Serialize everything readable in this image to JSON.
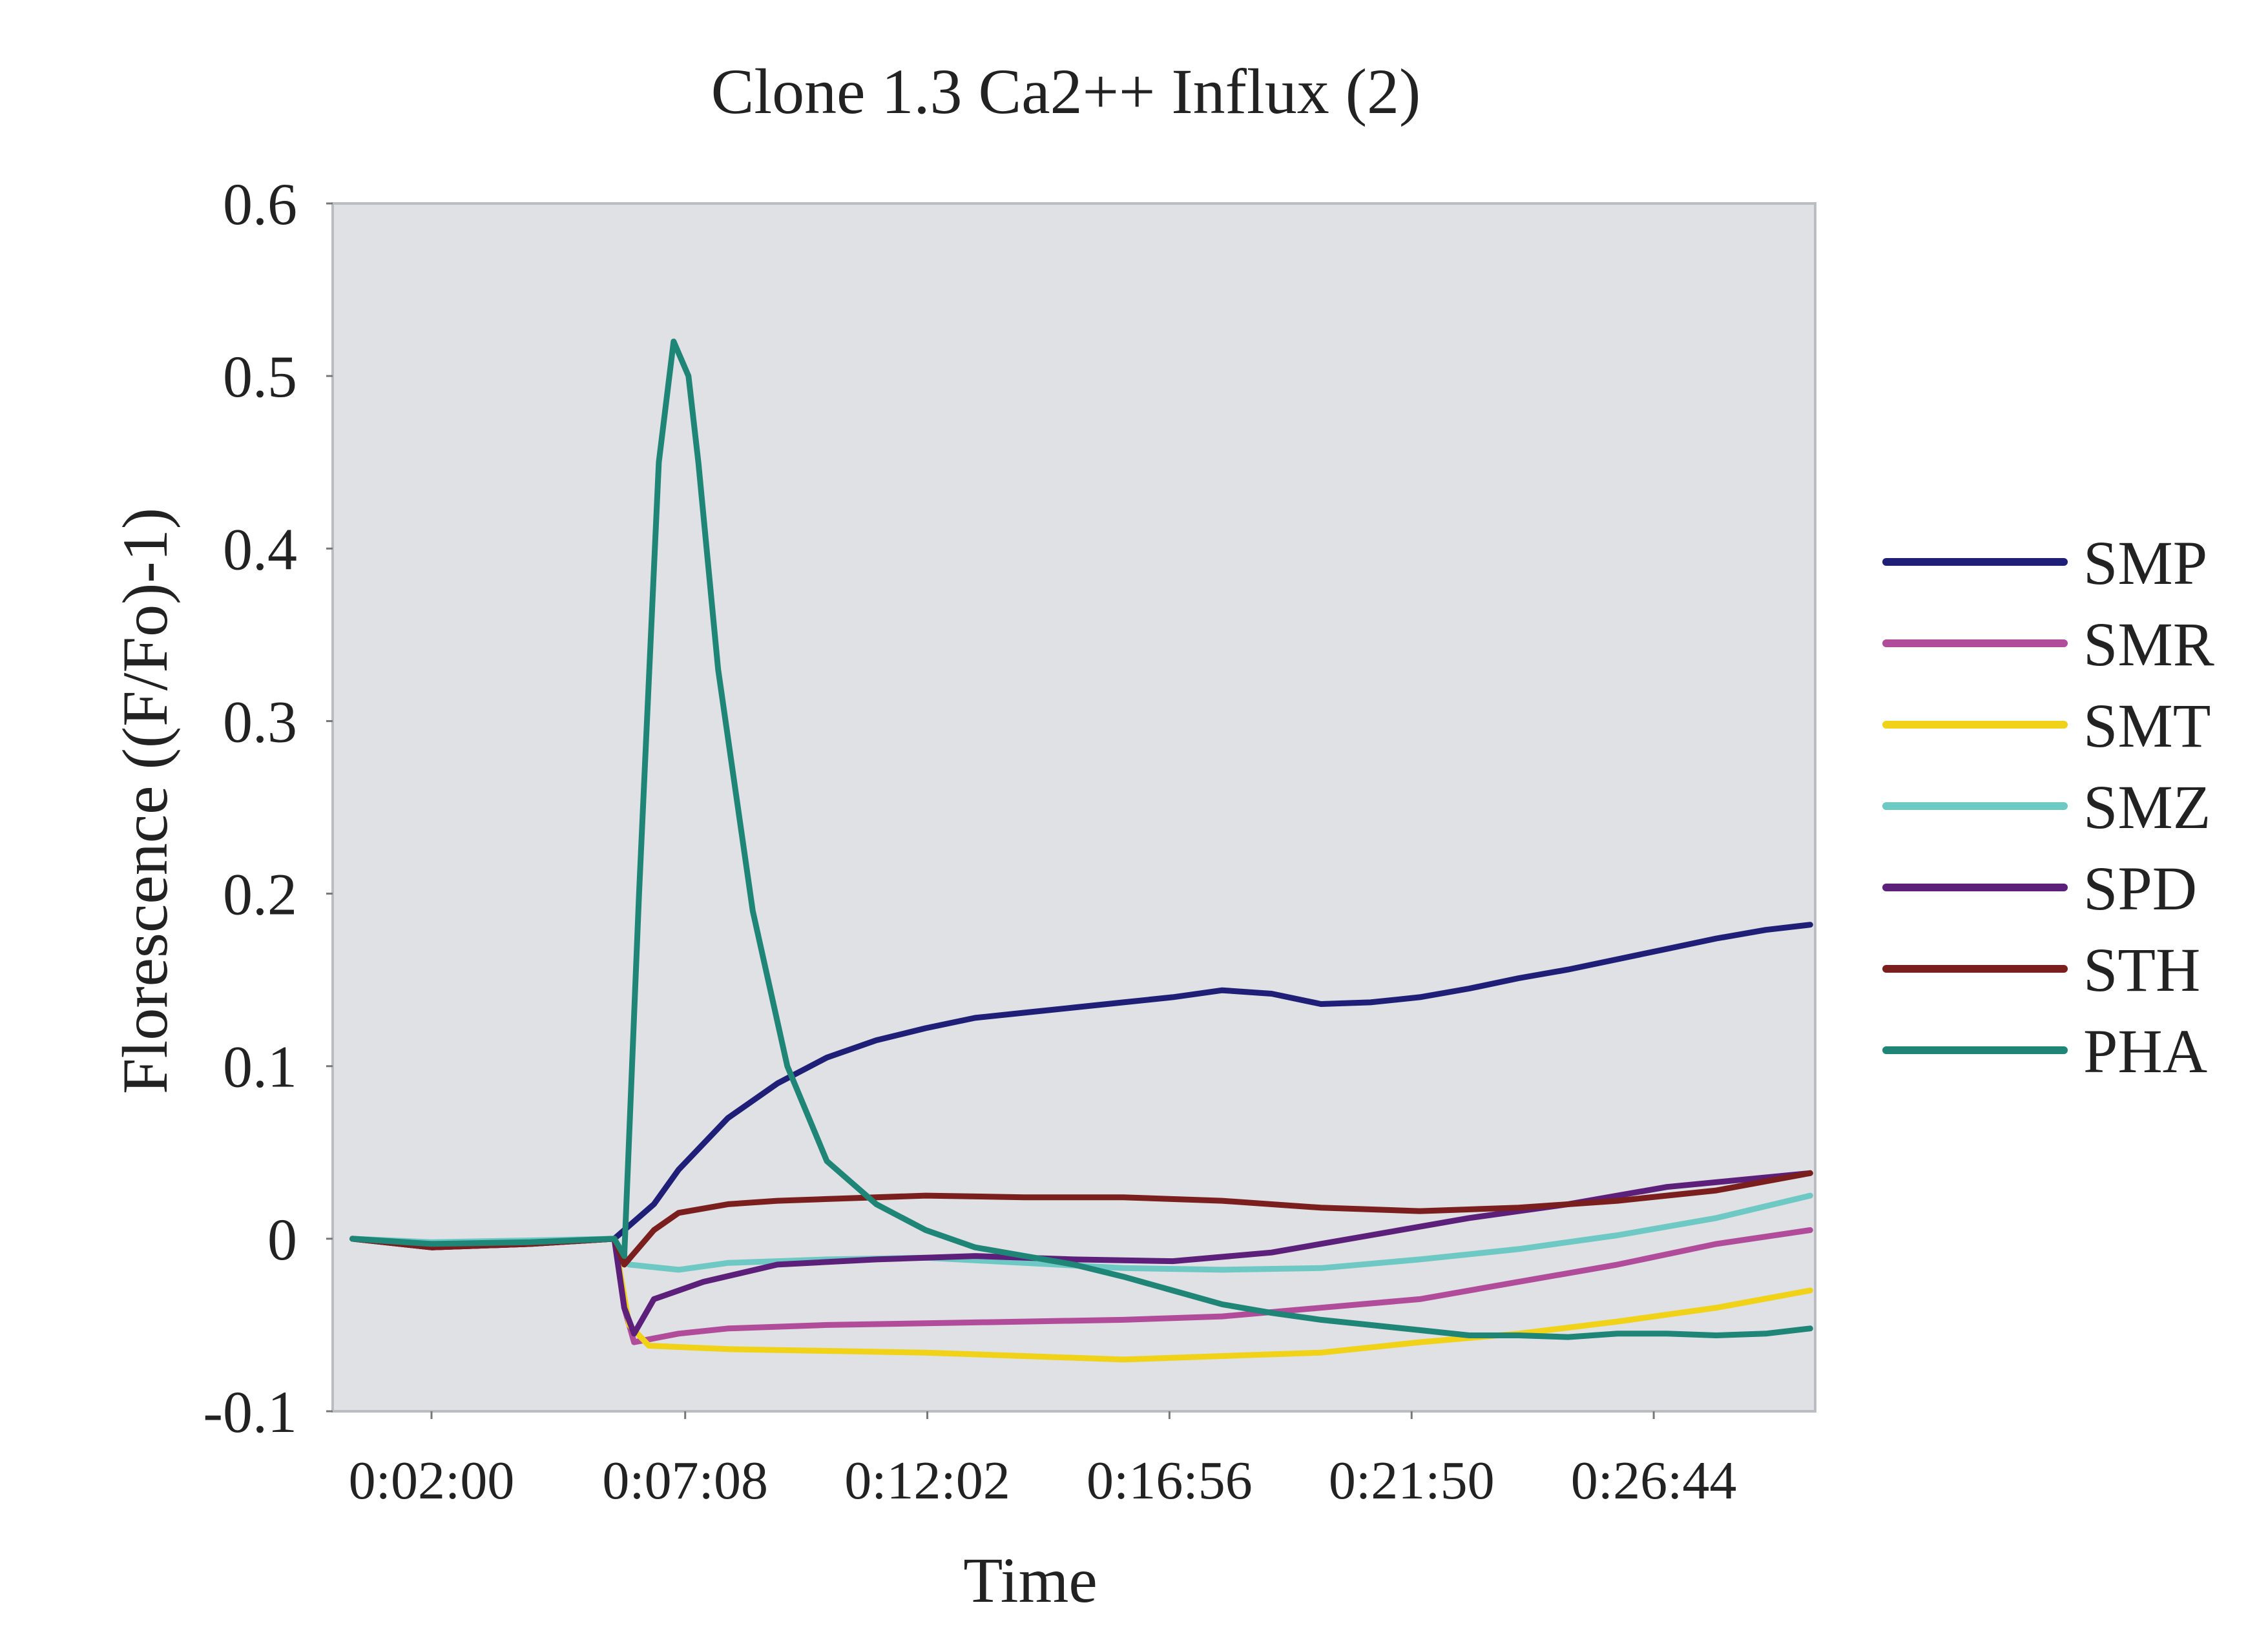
{
  "chart_data": {
    "type": "line",
    "title": "Clone 1.3 Ca2++ Influx (2)",
    "xlabel": "Time",
    "ylabel": "Florescence ((F/Fo)-1)",
    "x_unit": "minutes",
    "xlim": [
      0.0,
      30.0
    ],
    "ylim": [
      -0.1,
      0.6
    ],
    "yticks": [
      -0.1,
      0,
      0.1,
      0.2,
      0.3,
      0.4,
      0.5,
      0.6
    ],
    "ytick_labels": [
      "-0.1",
      "0",
      "0.1",
      "0.2",
      "0.3",
      "0.4",
      "0.5",
      "0.6"
    ],
    "xticks": [
      2.0,
      7.1333,
      12.0333,
      16.9333,
      21.8333,
      26.7333
    ],
    "xtick_labels": [
      "0:02:00",
      "0:07:08",
      "0:12:02",
      "0:16:56",
      "0:21:50",
      "0:26:44"
    ],
    "grid": false,
    "plot_background": "#dfe1e4",
    "legend_position": "right",
    "series": [
      {
        "name": "SMP",
        "color": "#1f1f78",
        "x": [
          0.4,
          2.0,
          4.0,
          5.7,
          6.1,
          6.5,
          7.0,
          8.0,
          9.0,
          10.0,
          11.0,
          12.0,
          13.0,
          14.0,
          15.0,
          16.0,
          17.0,
          18.0,
          19.0,
          20.0,
          21.0,
          22.0,
          23.0,
          24.0,
          25.0,
          26.0,
          27.0,
          28.0,
          29.0,
          29.9
        ],
        "y": [
          0.0,
          -0.005,
          -0.003,
          0.0,
          0.01,
          0.02,
          0.04,
          0.07,
          0.09,
          0.105,
          0.115,
          0.122,
          0.128,
          0.131,
          0.134,
          0.137,
          0.14,
          0.144,
          0.142,
          0.136,
          0.137,
          0.14,
          0.145,
          0.151,
          0.156,
          0.162,
          0.168,
          0.174,
          0.179,
          0.182
        ]
      },
      {
        "name": "SMR",
        "color": "#b04c9a",
        "x": [
          0.4,
          2.0,
          4.0,
          5.7,
          5.9,
          6.1,
          7.0,
          8.0,
          10.0,
          12.0,
          14.0,
          16.0,
          18.0,
          20.0,
          22.0,
          24.0,
          26.0,
          28.0,
          29.9
        ],
        "y": [
          0.0,
          -0.004,
          -0.002,
          0.0,
          -0.04,
          -0.06,
          -0.055,
          -0.052,
          -0.05,
          -0.049,
          -0.048,
          -0.047,
          -0.045,
          -0.04,
          -0.035,
          -0.025,
          -0.015,
          -0.003,
          0.005
        ]
      },
      {
        "name": "SMT",
        "color": "#f0d218",
        "x": [
          0.4,
          2.0,
          4.0,
          5.7,
          6.0,
          6.4,
          8.0,
          10.0,
          12.0,
          14.0,
          16.0,
          18.0,
          20.0,
          22.0,
          24.0,
          26.0,
          28.0,
          29.9
        ],
        "y": [
          0.0,
          -0.003,
          -0.002,
          0.0,
          -0.05,
          -0.062,
          -0.064,
          -0.065,
          -0.066,
          -0.068,
          -0.07,
          -0.068,
          -0.066,
          -0.06,
          -0.055,
          -0.048,
          -0.04,
          -0.03
        ]
      },
      {
        "name": "SMZ",
        "color": "#6ec8c4",
        "x": [
          0.4,
          2.0,
          4.0,
          5.7,
          6.0,
          7.0,
          8.0,
          10.0,
          12.0,
          14.0,
          16.0,
          18.0,
          20.0,
          22.0,
          24.0,
          26.0,
          28.0,
          29.9
        ],
        "y": [
          0.0,
          -0.002,
          -0.001,
          0.0,
          -0.015,
          -0.018,
          -0.014,
          -0.012,
          -0.011,
          -0.014,
          -0.017,
          -0.018,
          -0.017,
          -0.012,
          -0.006,
          0.002,
          0.012,
          0.025
        ]
      },
      {
        "name": "SPD",
        "color": "#5c1f7a",
        "x": [
          0.4,
          2.0,
          4.0,
          5.7,
          5.9,
          6.1,
          6.5,
          7.5,
          9.0,
          11.0,
          13.0,
          15.0,
          17.0,
          19.0,
          21.0,
          23.0,
          25.0,
          27.0,
          29.9
        ],
        "y": [
          0.0,
          -0.005,
          -0.003,
          0.0,
          -0.04,
          -0.055,
          -0.035,
          -0.025,
          -0.015,
          -0.012,
          -0.01,
          -0.012,
          -0.013,
          -0.008,
          0.002,
          0.012,
          0.02,
          0.03,
          0.038
        ]
      },
      {
        "name": "STH",
        "color": "#7a1e1e",
        "x": [
          0.4,
          2.0,
          4.0,
          5.7,
          5.9,
          6.5,
          7.0,
          8.0,
          9.0,
          10.0,
          12.0,
          14.0,
          16.0,
          18.0,
          20.0,
          22.0,
          24.0,
          26.0,
          28.0,
          29.9
        ],
        "y": [
          0.0,
          -0.005,
          -0.003,
          0.0,
          -0.015,
          0.005,
          0.015,
          0.02,
          0.022,
          0.023,
          0.025,
          0.024,
          0.024,
          0.022,
          0.018,
          0.016,
          0.018,
          0.022,
          0.028,
          0.038
        ]
      },
      {
        "name": "PHA",
        "color": "#1e8577",
        "x": [
          0.4,
          2.0,
          4.0,
          5.7,
          5.9,
          6.2,
          6.6,
          6.9,
          7.2,
          7.4,
          7.8,
          8.5,
          9.2,
          10.0,
          11.0,
          12.0,
          13.0,
          14.0,
          15.0,
          16.0,
          17.0,
          18.0,
          19.0,
          20.0,
          21.0,
          22.0,
          23.0,
          24.0,
          25.0,
          26.0,
          27.0,
          28.0,
          29.0,
          29.9
        ],
        "y": [
          0.0,
          -0.003,
          -0.002,
          0.0,
          -0.01,
          0.2,
          0.45,
          0.52,
          0.5,
          0.45,
          0.33,
          0.19,
          0.1,
          0.045,
          0.02,
          0.005,
          -0.005,
          -0.01,
          -0.015,
          -0.022,
          -0.03,
          -0.038,
          -0.043,
          -0.047,
          -0.05,
          -0.053,
          -0.056,
          -0.056,
          -0.057,
          -0.055,
          -0.055,
          -0.056,
          -0.055,
          -0.052
        ]
      }
    ]
  }
}
